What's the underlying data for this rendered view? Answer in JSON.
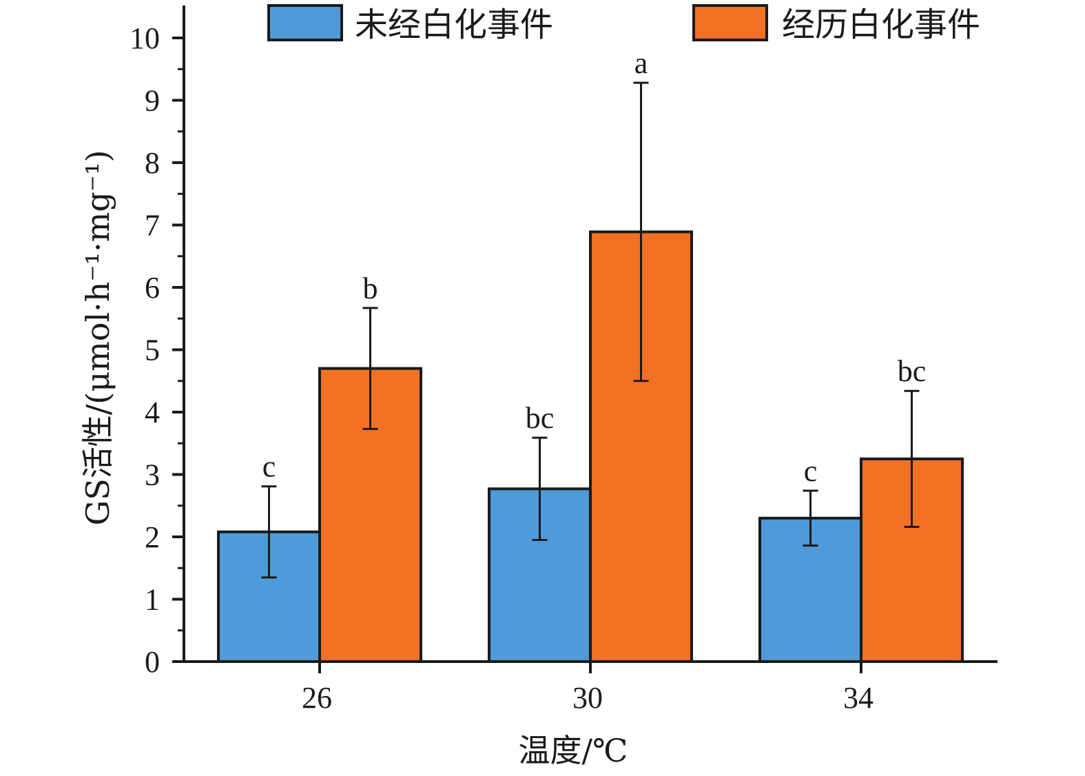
{
  "chart_data": {
    "type": "bar",
    "categories": [
      "26",
      "30",
      "34"
    ],
    "series": [
      {
        "name": "未经白化事件",
        "color": "#4f9bd9",
        "values": [
          2.08,
          2.77,
          2.3
        ],
        "errors": [
          0.73,
          0.82,
          0.44
        ],
        "labels": [
          "c",
          "bc",
          "c"
        ]
      },
      {
        "name": "经历白化事件",
        "color": "#f37125",
        "values": [
          4.7,
          6.89,
          3.25
        ],
        "errors": [
          0.97,
          2.39,
          1.09
        ],
        "labels": [
          "b",
          "a",
          "bc"
        ]
      }
    ],
    "xlabel": "温度/℃",
    "ylabel": "GS活性/(μmol·h⁻¹·mg⁻¹)",
    "ylim": [
      0,
      10
    ],
    "yticks": [
      "0",
      "1",
      "2",
      "3",
      "4",
      "5",
      "6",
      "7",
      "8",
      "9",
      "10"
    ],
    "grid": false,
    "legend_position": "top"
  }
}
